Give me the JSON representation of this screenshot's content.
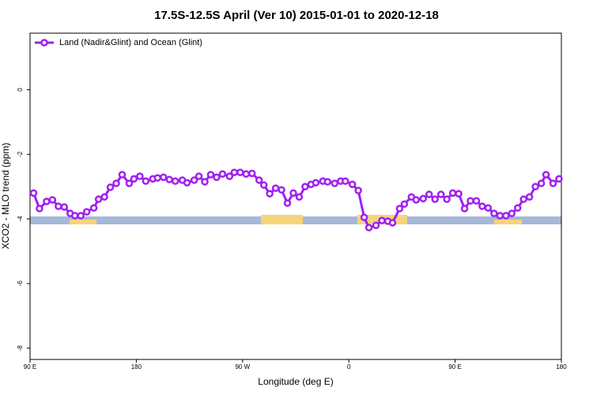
{
  "chart_data": {
    "type": "line",
    "title": "17.5S-12.5S April (Ver 10)   2015-01-01 to 2020-12-18",
    "xlabel": "Longitude (deg E)",
    "ylabel": "XCO2 - MLO trend (ppm)",
    "xlim": [
      90,
      540
    ],
    "ylim": [
      -8.35,
      1.75
    ],
    "xticks": [
      {
        "value": 90,
        "label": "90 E"
      },
      180,
      {
        "value": 270,
        "label": "90 W"
      },
      {
        "value": 360,
        "label": "0"
      },
      {
        "value": 450,
        "label": "90 E"
      },
      {
        "value": 540,
        "label": "180"
      }
    ],
    "yticks": [
      -8,
      -6,
      -4,
      -2,
      0
    ],
    "legend": "top-left",
    "x": [
      93,
      98,
      104,
      109,
      114,
      119,
      124,
      128,
      133,
      138,
      144,
      148,
      153,
      158,
      163,
      168,
      174,
      178,
      183,
      188,
      194,
      198,
      203,
      208,
      213,
      219,
      223,
      229,
      233,
      238,
      243,
      248,
      253,
      259,
      263,
      268,
      273,
      278,
      284,
      288,
      293,
      298,
      303,
      308,
      313,
      318,
      323,
      328,
      332,
      338,
      342,
      348,
      353,
      357,
      363,
      368,
      373,
      377,
      383,
      388,
      393,
      397,
      403,
      407,
      413,
      417,
      423,
      428,
      433,
      438,
      443,
      448,
      453,
      458,
      463,
      468,
      473,
      478,
      483,
      488,
      493,
      498,
      503,
      508,
      513,
      518,
      523,
      527,
      533,
      538
    ],
    "series": [
      {
        "name": "Land (Nadir&Glint) and Ocean (Glint)",
        "color": "#a020f0",
        "values": [
          -3.2,
          -3.68,
          -3.46,
          -3.41,
          -3.61,
          -3.63,
          -3.83,
          -3.9,
          -3.9,
          -3.78,
          -3.66,
          -3.39,
          -3.32,
          -3.02,
          -2.9,
          -2.63,
          -2.9,
          -2.76,
          -2.68,
          -2.83,
          -2.76,
          -2.73,
          -2.71,
          -2.78,
          -2.83,
          -2.8,
          -2.88,
          -2.8,
          -2.68,
          -2.85,
          -2.63,
          -2.71,
          -2.61,
          -2.68,
          -2.56,
          -2.56,
          -2.61,
          -2.59,
          -2.8,
          -2.95,
          -3.22,
          -3.05,
          -3.1,
          -3.51,
          -3.2,
          -3.32,
          -3.0,
          -2.93,
          -2.88,
          -2.83,
          -2.85,
          -2.9,
          -2.83,
          -2.83,
          -2.93,
          -3.12,
          -3.95,
          -4.27,
          -4.2,
          -4.05,
          -4.07,
          -4.12,
          -3.68,
          -3.54,
          -3.32,
          -3.41,
          -3.37,
          -3.24,
          -3.39,
          -3.24,
          -3.39,
          -3.2,
          -3.22,
          -3.68,
          -3.44,
          -3.44,
          -3.61,
          -3.66,
          -3.83,
          -3.9,
          -3.9,
          -3.83,
          -3.66,
          -3.39,
          -3.32,
          -3.0,
          -2.9,
          -2.63,
          -2.9,
          -2.76
        ]
      }
    ]
  }
}
